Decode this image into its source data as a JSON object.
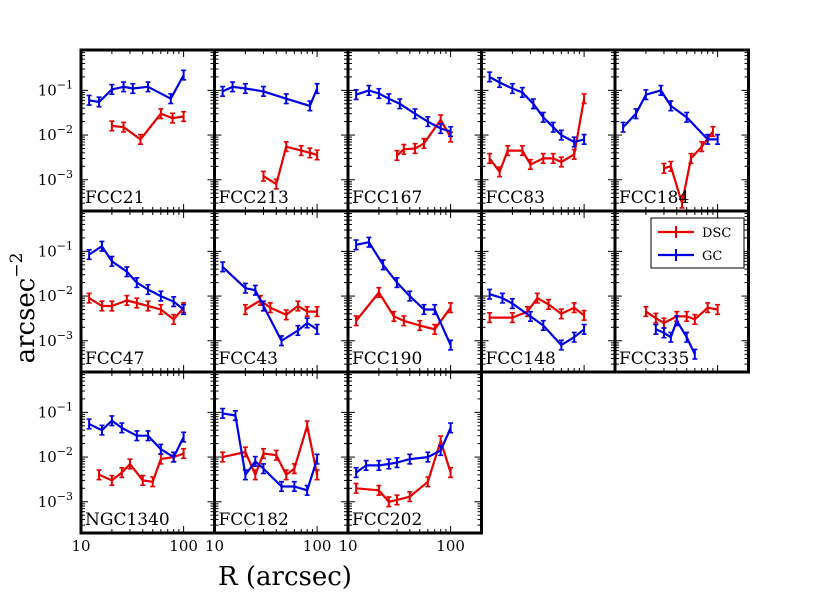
{
  "chart_data": {
    "type": "line",
    "xlabel": "R (arcsec)",
    "ylabel": "arcsec",
    "ylabel_exponent": "−2",
    "xscale": "log",
    "yscale": "log",
    "xlim": [
      10,
      200
    ],
    "ylim": [
      0.0002,
      0.8
    ],
    "xticks": [
      10,
      100
    ],
    "xtick_labels": [
      "10",
      "100"
    ],
    "ytick_base": "10",
    "yticks": [
      {
        "value": 0.1,
        "exponent": "−1"
      },
      {
        "value": 0.01,
        "exponent": "−2"
      },
      {
        "value": 0.001,
        "exponent": "−3"
      }
    ],
    "colors": {
      "DSC": "#e60000",
      "GC": "#0000e6"
    },
    "legend": {
      "placement": "panel FCC335 top-right",
      "entries": [
        "DSC",
        "GC"
      ]
    },
    "panels": [
      {
        "name": "FCC21",
        "DSC": {
          "x": [
            20,
            26,
            38,
            60,
            78,
            100
          ],
          "y": [
            0.016,
            0.015,
            0.008,
            0.03,
            0.024,
            0.026
          ]
        },
        "GC": {
          "x": [
            12,
            15,
            20,
            26,
            32,
            45,
            75,
            100
          ],
          "y": [
            0.06,
            0.055,
            0.105,
            0.12,
            0.11,
            0.12,
            0.065,
            0.22
          ]
        }
      },
      {
        "name": "FCC213",
        "DSC": {
          "x": [
            30,
            40,
            50,
            70,
            85,
            100
          ],
          "y": [
            0.0012,
            0.0008,
            0.0055,
            0.0045,
            0.004,
            0.0036
          ]
        },
        "GC": {
          "x": [
            12,
            15,
            20,
            30,
            50,
            85,
            100
          ],
          "y": [
            0.095,
            0.12,
            0.11,
            0.095,
            0.065,
            0.045,
            0.11
          ]
        }
      },
      {
        "name": "FCC167",
        "DSC": {
          "x": [
            30,
            35,
            45,
            55,
            80,
            100
          ],
          "y": [
            0.0035,
            0.0048,
            0.005,
            0.0065,
            0.022,
            0.009
          ]
        },
        "GC": {
          "x": [
            12,
            16,
            20,
            25,
            32,
            45,
            60,
            80,
            100
          ],
          "y": [
            0.08,
            0.1,
            0.085,
            0.065,
            0.05,
            0.03,
            0.02,
            0.014,
            0.012
          ]
        }
      },
      {
        "name": "FCC83",
        "DSC": {
          "x": [
            12,
            15,
            18,
            25,
            30,
            40,
            50,
            60,
            80,
            100
          ],
          "y": [
            0.003,
            0.0015,
            0.0045,
            0.0045,
            0.0022,
            0.003,
            0.003,
            0.0025,
            0.0037,
            0.065
          ]
        },
        "GC": {
          "x": [
            12,
            15,
            20,
            25,
            32,
            40,
            50,
            60,
            80,
            100
          ],
          "y": [
            0.2,
            0.15,
            0.11,
            0.09,
            0.05,
            0.025,
            0.015,
            0.01,
            0.007,
            0.008
          ]
        }
      },
      {
        "name": "FCC184",
        "DSC": {
          "x": [
            30,
            35,
            45,
            55,
            70,
            90
          ],
          "y": [
            0.0018,
            0.002,
            0.0003,
            0.003,
            0.0055,
            0.012
          ]
        },
        "GC": {
          "x": [
            12,
            16,
            20,
            28,
            35,
            50,
            80,
            100
          ],
          "y": [
            0.015,
            0.03,
            0.08,
            0.1,
            0.045,
            0.025,
            0.008,
            0.008
          ]
        }
      },
      {
        "name": "FCC47",
        "DSC": {
          "x": [
            12,
            16,
            20,
            28,
            35,
            45,
            60,
            80,
            100
          ],
          "y": [
            0.009,
            0.006,
            0.006,
            0.008,
            0.007,
            0.006,
            0.005,
            0.003,
            0.0055
          ]
        },
        "GC": {
          "x": [
            12,
            16,
            20,
            28,
            35,
            45,
            60,
            80,
            100
          ],
          "y": [
            0.085,
            0.13,
            0.06,
            0.035,
            0.02,
            0.014,
            0.01,
            0.0075,
            0.005
          ]
        }
      },
      {
        "name": "FCC43",
        "DSC": {
          "x": [
            20,
            28,
            35,
            50,
            65,
            80,
            100
          ],
          "y": [
            0.005,
            0.008,
            0.0055,
            0.0038,
            0.006,
            0.0045,
            0.0045
          ]
        },
        "GC": {
          "x": [
            12,
            20,
            25,
            30,
            45,
            65,
            80,
            100
          ],
          "y": [
            0.045,
            0.015,
            0.0135,
            0.006,
            0.001,
            0.0017,
            0.0025,
            0.0018
          ]
        }
      },
      {
        "name": "FCC190",
        "DSC": {
          "x": [
            12,
            20,
            28,
            35,
            50,
            70,
            100
          ],
          "y": [
            0.0028,
            0.012,
            0.0035,
            0.0028,
            0.0022,
            0.0018,
            0.0055
          ]
        },
        "GC": {
          "x": [
            12,
            16,
            22,
            30,
            40,
            55,
            70,
            100
          ],
          "y": [
            0.14,
            0.16,
            0.05,
            0.02,
            0.01,
            0.005,
            0.005,
            0.0008
          ]
        }
      },
      {
        "name": "FCC148",
        "DSC": {
          "x": [
            12,
            20,
            28,
            35,
            45,
            60,
            80,
            100
          ],
          "y": [
            0.0033,
            0.0033,
            0.0045,
            0.009,
            0.0065,
            0.004,
            0.0055,
            0.0037
          ]
        },
        "GC": {
          "x": [
            12,
            16,
            20,
            30,
            40,
            60,
            80,
            100
          ],
          "y": [
            0.011,
            0.009,
            0.0068,
            0.0035,
            0.0022,
            0.0008,
            0.0012,
            0.0018
          ]
        }
      },
      {
        "name": "FCC335",
        "DSC": {
          "x": [
            20,
            25,
            30,
            40,
            50,
            60,
            80,
            100
          ],
          "y": [
            0.0045,
            0.0032,
            0.0025,
            0.0035,
            0.0035,
            0.003,
            0.0055,
            0.005
          ]
        },
        "GC": {
          "x": [
            25,
            30,
            35,
            40,
            50,
            60
          ],
          "y": [
            0.0018,
            0.0015,
            0.0012,
            0.0028,
            0.0012,
            0.0005
          ]
        }
      },
      {
        "name": "NGC1340",
        "DSC": {
          "x": [
            15,
            20,
            25,
            30,
            40,
            50,
            60,
            80,
            100
          ],
          "y": [
            0.004,
            0.003,
            0.0045,
            0.007,
            0.003,
            0.0028,
            0.009,
            0.01,
            0.012
          ]
        },
        "GC": {
          "x": [
            12,
            16,
            20,
            25,
            35,
            45,
            60,
            80,
            100
          ],
          "y": [
            0.055,
            0.04,
            0.065,
            0.045,
            0.03,
            0.03,
            0.015,
            0.01,
            0.028
          ]
        }
      },
      {
        "name": "FCC182",
        "DSC": {
          "x": [
            12,
            20,
            25,
            30,
            40,
            50,
            60,
            80,
            100
          ],
          "y": [
            0.01,
            0.013,
            0.004,
            0.012,
            0.011,
            0.004,
            0.0055,
            0.05,
            0.004
          ]
        },
        "GC": {
          "x": [
            12,
            16,
            20,
            25,
            30,
            45,
            60,
            80,
            100
          ],
          "y": [
            0.095,
            0.085,
            0.004,
            0.008,
            0.0055,
            0.0022,
            0.0022,
            0.0018,
            0.009
          ]
        }
      },
      {
        "name": "FCC202",
        "DSC": {
          "x": [
            12,
            20,
            25,
            30,
            40,
            60,
            80,
            100
          ],
          "y": [
            0.002,
            0.0018,
            0.001,
            0.0011,
            0.0013,
            0.0028,
            0.023,
            0.0045
          ]
        },
        "GC": {
          "x": [
            12,
            15,
            20,
            25,
            30,
            40,
            60,
            80,
            100
          ],
          "y": [
            0.0045,
            0.0065,
            0.0065,
            0.007,
            0.0075,
            0.009,
            0.01,
            0.014,
            0.045
          ]
        }
      }
    ]
  }
}
